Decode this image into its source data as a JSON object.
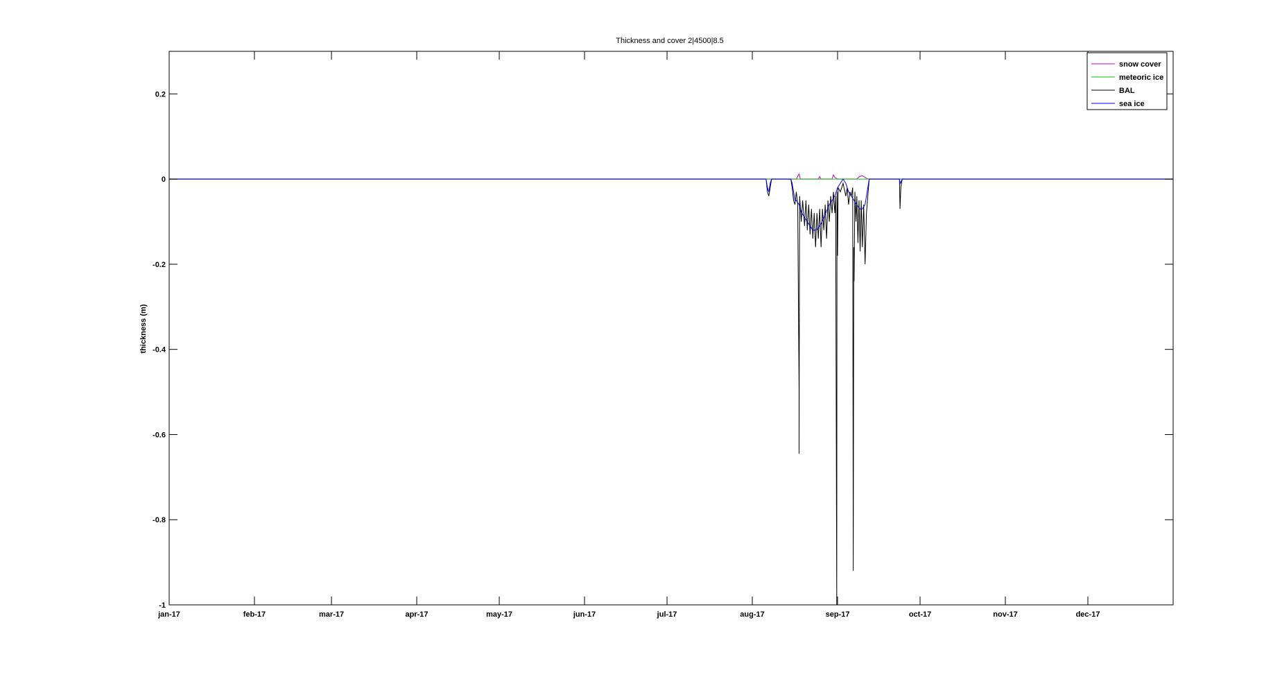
{
  "chart_data": {
    "type": "line",
    "title": "Thickness and cover 2|4500|8.5",
    "xlabel": "",
    "ylabel": "thickness (m)",
    "ylim": [
      -1,
      0.3
    ],
    "xlim": [
      0,
      365
    ],
    "grid": false,
    "legend_position": "top-right",
    "x_ticks": [
      {
        "day": 0,
        "label": "jan-17"
      },
      {
        "day": 31,
        "label": "feb-17"
      },
      {
        "day": 59,
        "label": "mar-17"
      },
      {
        "day": 90,
        "label": "apr-17"
      },
      {
        "day": 120,
        "label": "may-17"
      },
      {
        "day": 151,
        "label": "jun-17"
      },
      {
        "day": 181,
        "label": "jul-17"
      },
      {
        "day": 212,
        "label": "aug-17"
      },
      {
        "day": 243,
        "label": "sep-17"
      },
      {
        "day": 273,
        "label": "oct-17"
      },
      {
        "day": 304,
        "label": "nov-17"
      },
      {
        "day": 334,
        "label": "dec-17"
      }
    ],
    "y_ticks": [
      {
        "value": 0.2,
        "label": "0.2"
      },
      {
        "value": 0,
        "label": "0"
      },
      {
        "value": -0.2,
        "label": "-0.2"
      },
      {
        "value": -0.4,
        "label": "-0.4"
      },
      {
        "value": -0.6,
        "label": "-0.6"
      },
      {
        "value": -0.8,
        "label": "-0.8"
      },
      {
        "value": -1,
        "label": "-1"
      }
    ],
    "series": [
      {
        "name": "snow cover",
        "color": "#c000c0",
        "points": [
          [
            0,
            0
          ],
          [
            228,
            0
          ],
          [
            229,
            0.012
          ],
          [
            229.5,
            0
          ],
          [
            236,
            0
          ],
          [
            236.5,
            0.006
          ],
          [
            237,
            0
          ],
          [
            241,
            0
          ],
          [
            241.5,
            0.01
          ],
          [
            242,
            0.004
          ],
          [
            243,
            0
          ],
          [
            250,
            0
          ],
          [
            251,
            0.006
          ],
          [
            252,
            0.008
          ],
          [
            253,
            0.004
          ],
          [
            254,
            0
          ],
          [
            365,
            0
          ]
        ]
      },
      {
        "name": "meteoric ice",
        "color": "#00c000",
        "points": [
          [
            0,
            0
          ],
          [
            365,
            0
          ]
        ]
      },
      {
        "name": "BAL",
        "color": "#000000",
        "points": [
          [
            0,
            0
          ],
          [
            217,
            0
          ],
          [
            217.5,
            -0.03
          ],
          [
            218,
            -0.04
          ],
          [
            218.5,
            -0.02
          ],
          [
            219,
            0
          ],
          [
            226,
            0
          ],
          [
            226.5,
            -0.02
          ],
          [
            227,
            -0.05
          ],
          [
            227.5,
            -0.06
          ],
          [
            228,
            -0.03
          ],
          [
            228.5,
            -0.06
          ],
          [
            229,
            -0.49
          ],
          [
            229,
            -0.645
          ],
          [
            229.2,
            -0.04
          ],
          [
            229.8,
            -0.1
          ],
          [
            230.3,
            -0.05
          ],
          [
            231,
            -0.11
          ],
          [
            231.5,
            -0.05
          ],
          [
            232,
            -0.12
          ],
          [
            232.5,
            -0.06
          ],
          [
            233,
            -0.13
          ],
          [
            233.5,
            -0.07
          ],
          [
            234,
            -0.14
          ],
          [
            234.5,
            -0.08
          ],
          [
            235,
            -0.16
          ],
          [
            235.5,
            -0.08
          ],
          [
            236,
            -0.14
          ],
          [
            236.5,
            -0.07
          ],
          [
            237,
            -0.16
          ],
          [
            237.5,
            -0.07
          ],
          [
            238,
            -0.12
          ],
          [
            238.5,
            -0.06
          ],
          [
            239,
            -0.14
          ],
          [
            239.5,
            -0.05
          ],
          [
            240,
            -0.1
          ],
          [
            240.5,
            -0.04
          ],
          [
            241,
            -0.08
          ],
          [
            241.5,
            -0.03
          ],
          [
            242,
            -0.08
          ],
          [
            242.3,
            -0.04
          ],
          [
            242.6,
            -0.77
          ],
          [
            242.7,
            -1
          ],
          [
            242.8,
            -0.03
          ],
          [
            243,
            -0.18
          ],
          [
            243.2,
            -0.02
          ],
          [
            244,
            -0.03
          ],
          [
            245,
            -0.01
          ],
          [
            246,
            -0.04
          ],
          [
            246.5,
            -0.02
          ],
          [
            247,
            -0.06
          ],
          [
            247.5,
            -0.03
          ],
          [
            248,
            -0.04
          ],
          [
            248.5,
            -0.02
          ],
          [
            248.7,
            -0.92
          ],
          [
            248.9,
            -0.16
          ],
          [
            249,
            -0.24
          ],
          [
            249.3,
            -0.03
          ],
          [
            249.7,
            -0.1
          ],
          [
            250,
            -0.04
          ],
          [
            250.4,
            -0.15
          ],
          [
            250.8,
            -0.05
          ],
          [
            251.2,
            -0.17
          ],
          [
            251.6,
            -0.05
          ],
          [
            252,
            -0.16
          ],
          [
            252.5,
            -0.06
          ],
          [
            253,
            -0.2
          ],
          [
            253.5,
            -0.08
          ],
          [
            254,
            -0.04
          ],
          [
            254.5,
            0
          ],
          [
            264,
            0
          ],
          [
            265.5,
            0
          ],
          [
            265.7,
            -0.07
          ],
          [
            266,
            -0.02
          ],
          [
            266.5,
            0
          ],
          [
            365,
            0
          ]
        ]
      },
      {
        "name": "sea ice",
        "color": "#0000ff",
        "points": [
          [
            0,
            0
          ],
          [
            217,
            0
          ],
          [
            217.5,
            -0.02
          ],
          [
            218,
            -0.03
          ],
          [
            218.5,
            -0.01
          ],
          [
            219,
            0
          ],
          [
            226,
            0
          ],
          [
            226.5,
            -0.01
          ],
          [
            227,
            -0.03
          ],
          [
            227.5,
            -0.05
          ],
          [
            228,
            -0.05
          ],
          [
            229,
            -0.06
          ],
          [
            230,
            -0.08
          ],
          [
            231,
            -0.09
          ],
          [
            232,
            -0.1
          ],
          [
            233,
            -0.11
          ],
          [
            234,
            -0.12
          ],
          [
            235,
            -0.12
          ],
          [
            236,
            -0.115
          ],
          [
            237,
            -0.105
          ],
          [
            238,
            -0.09
          ],
          [
            239,
            -0.075
          ],
          [
            240,
            -0.06
          ],
          [
            241,
            -0.05
          ],
          [
            242,
            -0.04
          ],
          [
            243,
            -0.02
          ],
          [
            244,
            -0.01
          ],
          [
            245,
            0
          ],
          [
            246,
            -0.01
          ],
          [
            247,
            -0.03
          ],
          [
            248,
            -0.04
          ],
          [
            249,
            -0.05
          ],
          [
            250,
            -0.06
          ],
          [
            251,
            -0.07
          ],
          [
            252,
            -0.07
          ],
          [
            253,
            -0.06
          ],
          [
            254,
            -0.02
          ],
          [
            254.5,
            0
          ],
          [
            265.5,
            0
          ],
          [
            265.8,
            -0.01
          ],
          [
            266.5,
            0
          ],
          [
            365,
            0
          ]
        ]
      }
    ]
  }
}
